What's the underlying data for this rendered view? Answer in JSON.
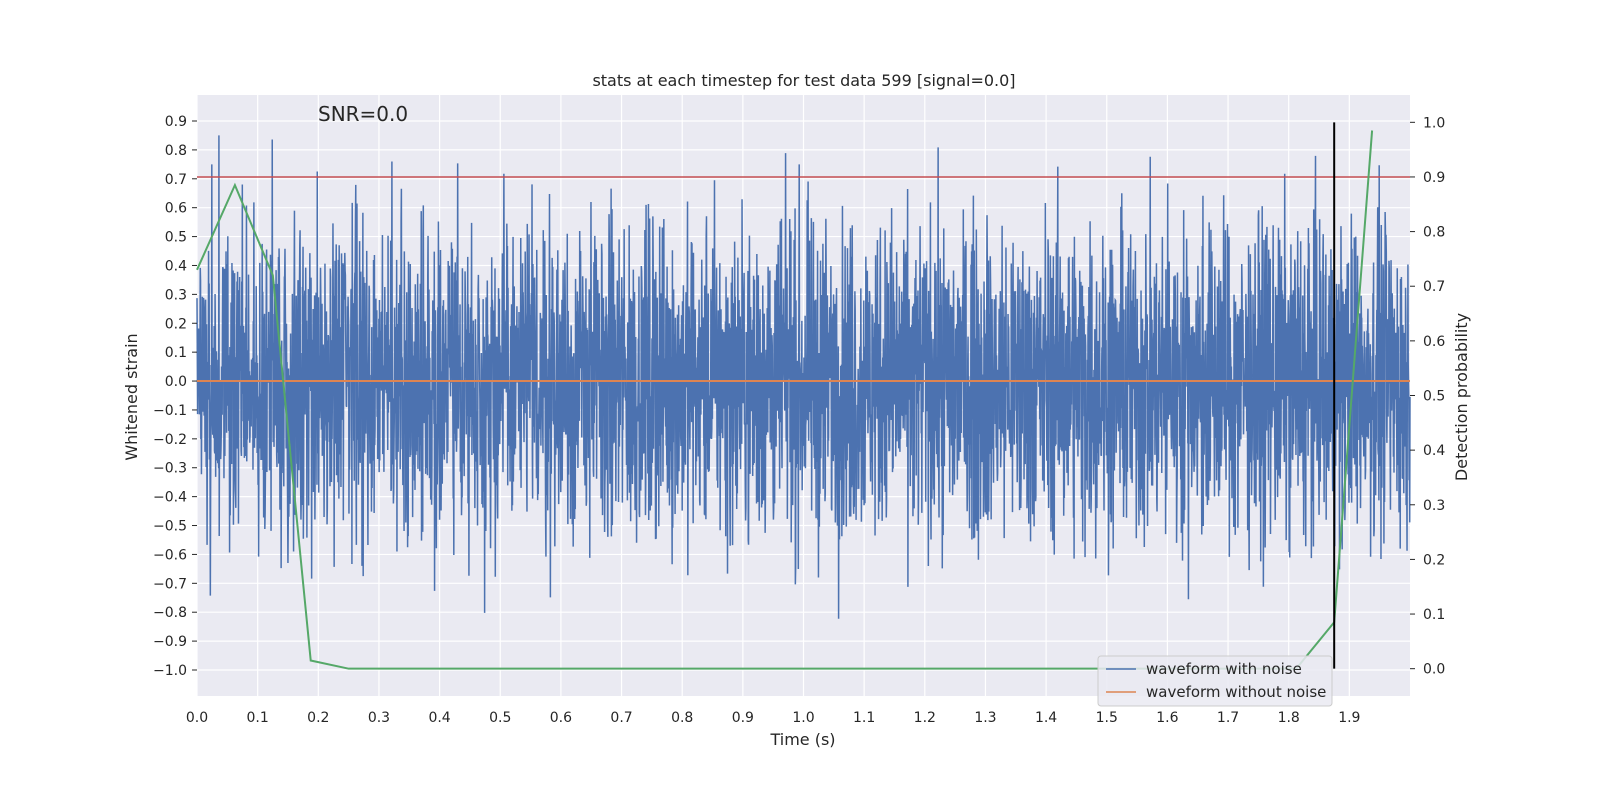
{
  "chart_data": {
    "type": "line",
    "title": "stats at each timestep for test data 599 [signal=0.0]",
    "annotation": "SNR=0.0",
    "xlabel": "Time (s)",
    "ylabel": "Whitened strain",
    "y2label": "Detection probability",
    "xlim": [
      0.0,
      2.0
    ],
    "ylim": [
      -1.09,
      0.99
    ],
    "y2lim": [
      -0.05,
      1.05
    ],
    "xticks": [
      "0.0",
      "0.1",
      "0.2",
      "0.3",
      "0.4",
      "0.5",
      "0.6",
      "0.7",
      "0.8",
      "0.9",
      "1.0",
      "1.1",
      "1.2",
      "1.3",
      "1.4",
      "1.5",
      "1.6",
      "1.7",
      "1.8",
      "1.9"
    ],
    "yticks": [
      "0.9",
      "0.8",
      "0.7",
      "0.6",
      "0.5",
      "0.4",
      "0.3",
      "0.2",
      "0.1",
      "0.0",
      "-0.1",
      "-0.2",
      "-0.3",
      "-0.4",
      "-0.5",
      "-0.6",
      "-0.7",
      "-0.8",
      "-0.9",
      "-1.0"
    ],
    "y2ticks": [
      "1.0",
      "0.9",
      "0.8",
      "0.7",
      "0.6",
      "0.5",
      "0.4",
      "0.3",
      "0.2",
      "0.1",
      "0.0"
    ],
    "series": [
      {
        "name": "waveform with noise",
        "color": "#4c72b0",
        "description": "whitened strain noise, approx. range -1.0 to 0.9, 4096 samples over 2.0 s"
      },
      {
        "name": "waveform without noise",
        "color": "#dd8452",
        "y": 0.0
      }
    ],
    "detection_probability": {
      "color": "#55a868",
      "x": [
        0.0,
        0.0625,
        0.125,
        0.1875,
        0.25,
        0.3125,
        0.375,
        0.4375,
        0.5,
        0.5625,
        0.625,
        0.6875,
        0.75,
        0.8125,
        0.875,
        0.9375,
        1.0,
        1.0625,
        1.125,
        1.1875,
        1.25,
        1.3125,
        1.375,
        1.4375,
        1.5,
        1.5625,
        1.625,
        1.6875,
        1.75,
        1.8125,
        1.875,
        1.9375
      ],
      "y": [
        0.73,
        0.885,
        0.72,
        0.015,
        0.0,
        0.0,
        0.0,
        0.0,
        0.0,
        0.0,
        0.0,
        0.0,
        0.0,
        0.0,
        0.0,
        0.0,
        0.0,
        0.0,
        0.0,
        0.0,
        0.0,
        0.0,
        0.0,
        0.0,
        0.0,
        0.0,
        0.0,
        0.0,
        0.0,
        0.0,
        0.085,
        0.985
      ]
    },
    "threshold": {
      "y2": 0.9,
      "color": "#c44e52"
    },
    "marker_line": {
      "x": 1.875,
      "y2_from": 0.0,
      "y2_to": 1.0,
      "color": "#000000"
    },
    "legend": {
      "placement": "bottom-right",
      "entries": [
        "waveform with noise",
        "waveform without noise"
      ]
    }
  }
}
